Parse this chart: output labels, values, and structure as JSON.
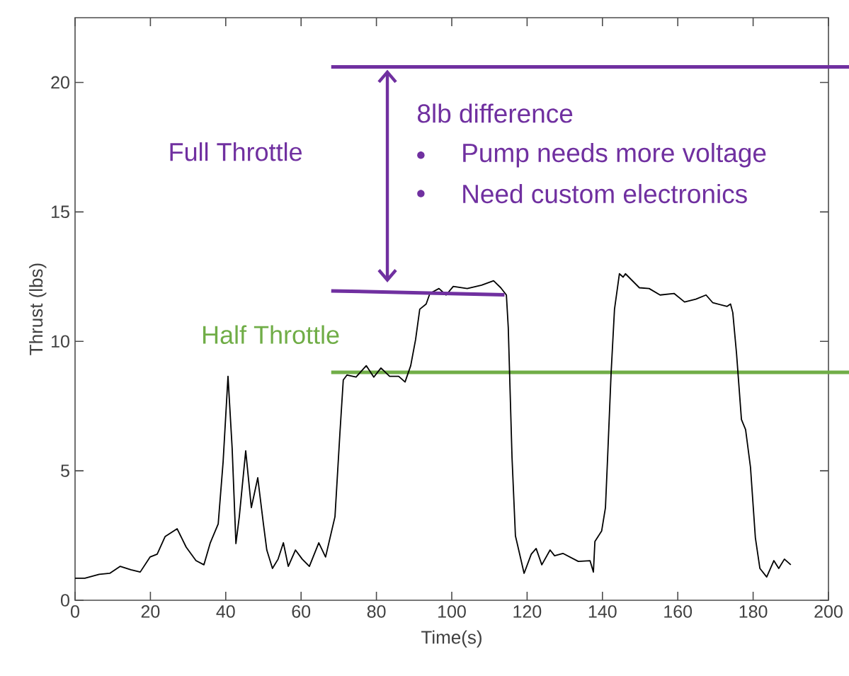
{
  "chart_data": {
    "type": "line",
    "xlabel": "Time(s)",
    "ylabel": "Thrust (lbs)",
    "xlim": [
      0,
      200
    ],
    "ylim": [
      0,
      22.5
    ],
    "xticks": [
      0,
      20,
      40,
      60,
      80,
      100,
      120,
      140,
      160,
      180,
      200
    ],
    "yticks": [
      0,
      5,
      10,
      15,
      20
    ],
    "series": [
      {
        "color": "#000000",
        "x": [
          0,
          2.6,
          6.4,
          9.2,
          12.0,
          14.8,
          17.3,
          19.9,
          21.8,
          23.9,
          27.1,
          29.5,
          32.1,
          34.2,
          35.9,
          38.0,
          39.3,
          40.6,
          41.7,
          42.7,
          43.6,
          45.3,
          46.8,
          48.5,
          50.0,
          50.9,
          52.4,
          53.9,
          55.3,
          56.6,
          58.5,
          60.3,
          62.2,
          64.7,
          66.5,
          69.0,
          70.3,
          71.2,
          72.2,
          74.6,
          77.3,
          79.3,
          81.2,
          83.5,
          85.9,
          87.6,
          89.1,
          90.4,
          91.5,
          93.2,
          94.2,
          96.6,
          98.5,
          100.4,
          104.1,
          107.9,
          111.1,
          113.0,
          114.5,
          115.0,
          116.0,
          116.9,
          119.2,
          121.1,
          122.4,
          123.9,
          126.1,
          127.3,
          129.5,
          133.6,
          136.7,
          137.6,
          138.0,
          139.8,
          140.8,
          141.4,
          142.3,
          143.2,
          144.5,
          145.5,
          146.1,
          149.8,
          152.4,
          155.3,
          159.0,
          161.8,
          164.8,
          167.5,
          169.3,
          173.1,
          174.0,
          174.6,
          175.6,
          176.9,
          178.0,
          179.3,
          180.6,
          181.8,
          183.6,
          185.5,
          186.8,
          188.3,
          190.0
        ],
        "values": [
          0.85,
          0.85,
          1.0,
          1.04,
          1.31,
          1.18,
          1.09,
          1.67,
          1.78,
          2.46,
          2.76,
          2.05,
          1.53,
          1.37,
          2.22,
          2.95,
          5.34,
          8.65,
          5.88,
          2.19,
          3.23,
          5.77,
          3.58,
          4.73,
          2.95,
          1.94,
          1.23,
          1.59,
          2.22,
          1.31,
          1.94,
          1.59,
          1.31,
          2.22,
          1.67,
          3.23,
          6.43,
          8.51,
          8.7,
          8.62,
          9.06,
          8.62,
          8.97,
          8.65,
          8.65,
          8.43,
          9.06,
          10.07,
          11.24,
          11.44,
          11.85,
          12.04,
          11.79,
          12.12,
          12.04,
          12.17,
          12.34,
          12.07,
          11.79,
          10.53,
          5.5,
          2.49,
          1.04,
          1.78,
          2.0,
          1.37,
          1.94,
          1.72,
          1.81,
          1.5,
          1.53,
          1.09,
          2.27,
          2.68,
          3.58,
          5.61,
          8.78,
          11.24,
          12.61,
          12.48,
          12.61,
          12.07,
          12.04,
          11.79,
          11.85,
          11.52,
          11.63,
          11.79,
          11.49,
          11.35,
          11.44,
          11.11,
          9.52,
          6.98,
          6.59,
          5.14,
          2.41,
          1.23,
          0.9,
          1.53,
          1.23,
          1.59,
          1.37
        ]
      },
      {
        "color": "#7030a0",
        "x": [
          68,
          114
        ],
        "values": [
          11.95,
          11.8
        ]
      }
    ],
    "ref_lines": [
      {
        "axis": "y",
        "value": 20.6,
        "label": "Full Throttle",
        "color": "#7030a0"
      },
      {
        "axis": "y",
        "value": 8.8,
        "label": "Half Throttle",
        "color": "#70ad47"
      }
    ],
    "annotations": [
      "8lb difference",
      "Pump needs more voltage",
      "Need custom electronics"
    ]
  }
}
